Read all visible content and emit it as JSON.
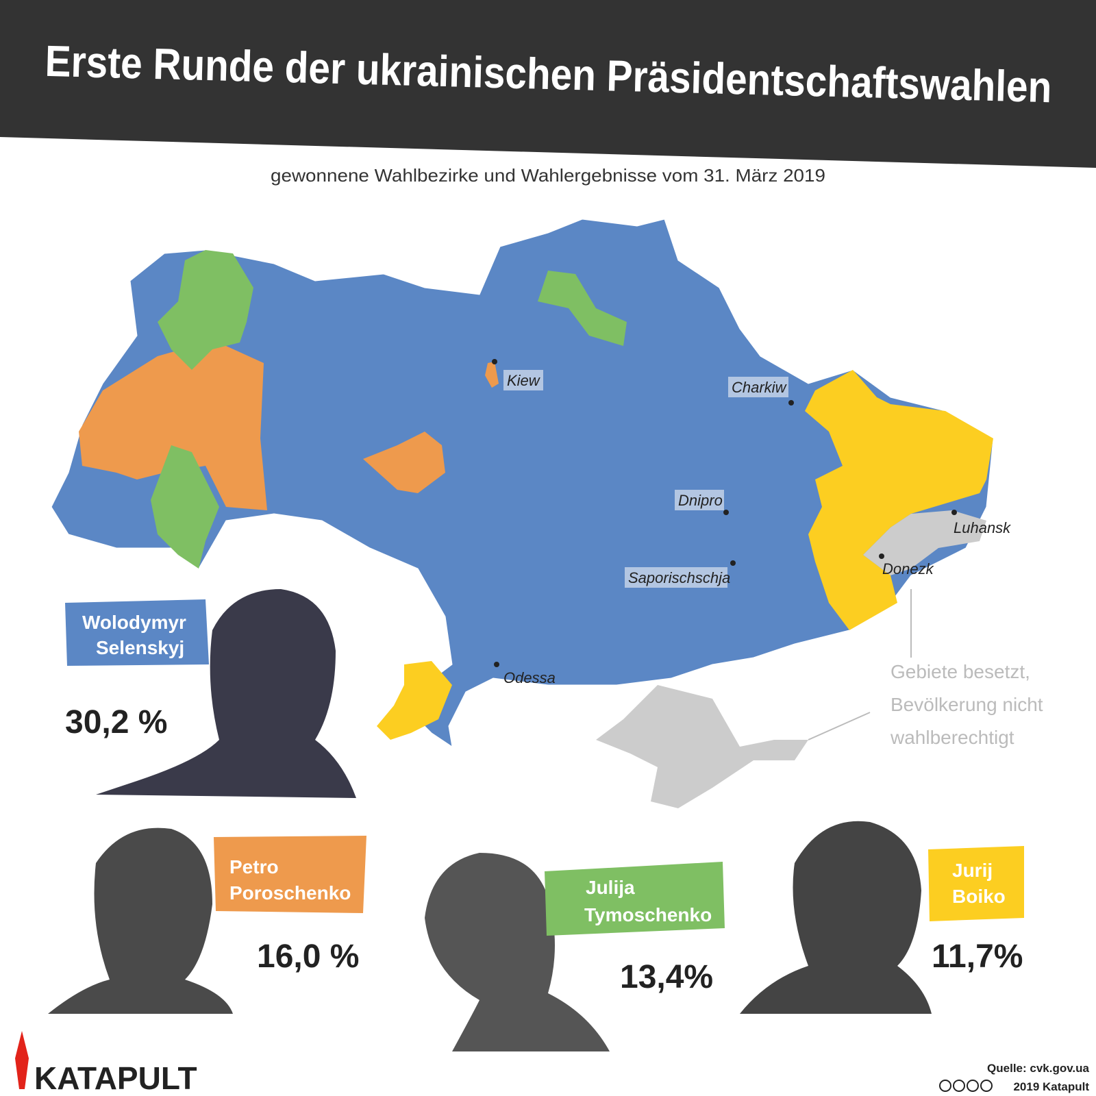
{
  "header": {
    "title": "Erste Runde der ukrainischen Präsidentschaftswahlen",
    "subtitle": "gewonnene Wahlbezirke und Wahlergebnisse vom 31. März 2019"
  },
  "map": {
    "cities": [
      "Kiew",
      "Charkiw",
      "Dnipro",
      "Luhansk",
      "Donezk",
      "Saporischschja",
      "Odessa"
    ],
    "note": [
      "Gebiete besetzt,",
      "Bevölkerung nicht",
      "wahlberechtigt"
    ]
  },
  "candidates": [
    {
      "first": "Wolodymyr",
      "last": "Selenskyj",
      "result": "30,2 %"
    },
    {
      "first": "Petro",
      "last": "Poroschenko",
      "result": "16,0 %"
    },
    {
      "first": "Julija",
      "last": "Tymoschenko",
      "result": "13,4%"
    },
    {
      "first": "Jurij",
      "last": "Boiko",
      "result": "11,7%"
    }
  ],
  "footer": {
    "logo": "KATAPULT",
    "source": "Quelle: cvk.gov.ua",
    "copyright": "2019 Katapult"
  }
}
